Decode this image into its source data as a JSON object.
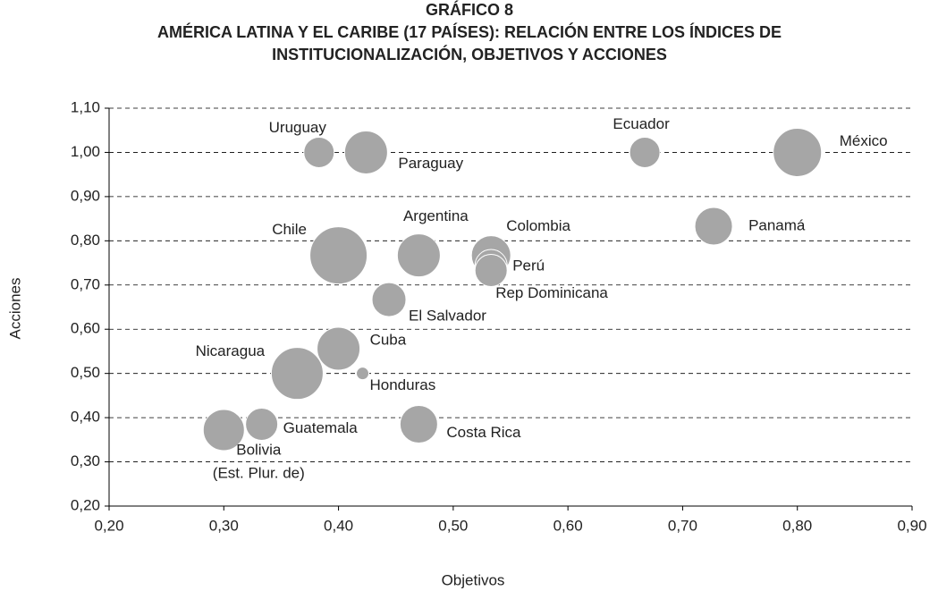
{
  "chart_data": {
    "type": "bubble",
    "title": "GRÁFICO 8",
    "subtitle": [
      "AMÉRICA LATINA Y EL CARIBE (17 PAÍSES): RELACIÓN ENTRE LOS ÍNDICES DE",
      "INSTITUCIONALIZACIÓN, OBJETIVOS Y ACCIONES"
    ],
    "x_label": "Objetivos",
    "y_label": "Acciones",
    "labels": [
      "Uruguay",
      "Paraguay",
      "Ecuador",
      "México",
      "Chile",
      "Argentina",
      "Colombia",
      "Perú",
      "Rep Dominicana",
      "Panamá",
      "El Salvador",
      "Cuba",
      "Nicaragua",
      "Honduras",
      "Guatemala",
      "Costa Rica",
      [
        "Bolivia",
        "(Est. Plur. de)"
      ]
    ],
    "x": [
      0.383,
      0.424,
      0.667,
      0.8,
      0.4,
      0.47,
      0.533,
      0.533,
      0.533,
      0.727,
      0.444,
      0.4,
      0.364,
      0.421,
      0.333,
      0.47,
      0.3
    ],
    "values": [
      1.0,
      1.0,
      1.0,
      1.0,
      0.767,
      0.767,
      0.767,
      0.744,
      0.733,
      0.833,
      0.667,
      0.556,
      0.5,
      0.5,
      0.385,
      0.385,
      0.372
    ],
    "sizes": [
      17,
      24,
      17,
      27,
      32,
      24,
      22,
      18,
      18,
      21,
      19,
      24,
      29,
      7,
      18,
      21,
      23
    ],
    "color": "#a6a6a6",
    "xlim": [
      0.2,
      0.9
    ],
    "ylim": [
      0.2,
      1.1
    ],
    "xticks": [
      {
        "value": 0.2,
        "label": "0,20"
      },
      {
        "value": 0.3,
        "label": "0,30"
      },
      {
        "value": 0.4,
        "label": "0,40"
      },
      {
        "value": 0.5,
        "label": "0,50"
      },
      {
        "value": 0.6,
        "label": "0,60"
      },
      {
        "value": 0.7,
        "label": "0,70"
      },
      {
        "value": 0.8,
        "label": "0,80"
      },
      {
        "value": 0.9,
        "label": "0,90"
      }
    ],
    "yticks": [
      {
        "value": 0.2,
        "label": "0,20"
      },
      {
        "value": 0.3,
        "label": "0,30"
      },
      {
        "value": 0.4,
        "label": "0,40"
      },
      {
        "value": 0.5,
        "label": "0,50"
      },
      {
        "value": 0.6,
        "label": "0,60"
      },
      {
        "value": 0.7,
        "label": "0,70"
      },
      {
        "value": 0.8,
        "label": "0,80"
      },
      {
        "value": 0.9,
        "label": "0,90"
      },
      {
        "value": 1.0,
        "label": "1,00"
      },
      {
        "value": 1.1,
        "label": "1,10"
      }
    ],
    "grid": true
  }
}
